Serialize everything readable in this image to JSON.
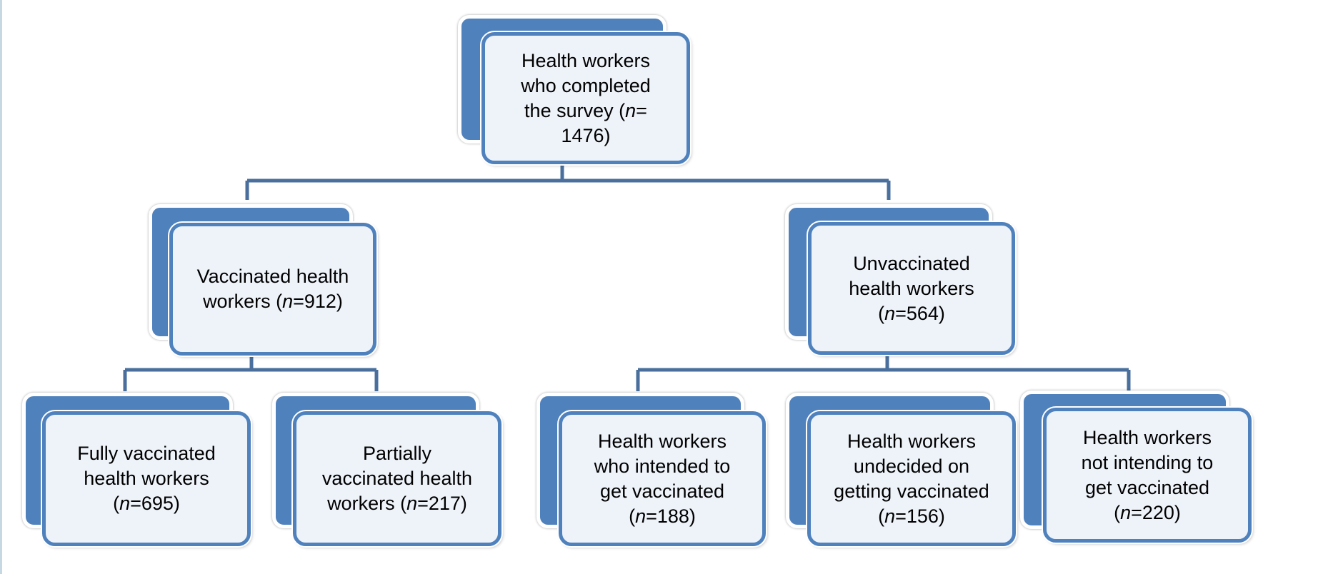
{
  "colors": {
    "accent": "#4f81bd",
    "box_fill": "#eef3fa",
    "connector": "#4a6f9c"
  },
  "nodes": {
    "root": {
      "line1": "Health workers",
      "line2": "who completed",
      "line3_pre": "the survey (",
      "n_label": "n",
      "line3_post": "=",
      "line4": "1476)"
    },
    "vaccinated": {
      "line1": "Vaccinated health",
      "line2_pre": "workers (",
      "n_label": "n",
      "line2_post": "=912)"
    },
    "unvaccinated": {
      "line1": "Unvaccinated",
      "line2": "health workers",
      "line3_pre": "(",
      "n_label": "n",
      "line3_post": "=564)"
    },
    "fully": {
      "line1": "Fully vaccinated",
      "line2": "health workers",
      "line3_pre": "(",
      "n_label": "n",
      "line3_post": "=695)"
    },
    "partially": {
      "line1": "Partially",
      "line2": "vaccinated health",
      "line3_pre": "workers (",
      "n_label": "n",
      "line3_post": "=217)"
    },
    "intended": {
      "line1": "Health workers",
      "line2": "who intended to",
      "line3": "get vaccinated",
      "line4_pre": "(",
      "n_label": "n",
      "line4_post": "=188)"
    },
    "undecided": {
      "line1": "Health workers",
      "line2": "undecided on",
      "line3": "getting vaccinated",
      "line4_pre": "(",
      "n_label": "n",
      "line4_post": "=156)"
    },
    "not_intending": {
      "line1": "Health workers",
      "line2": "not intending to",
      "line3": "get vaccinated",
      "line4_pre": "(",
      "n_label": "n",
      "line4_post": "=220)"
    }
  }
}
